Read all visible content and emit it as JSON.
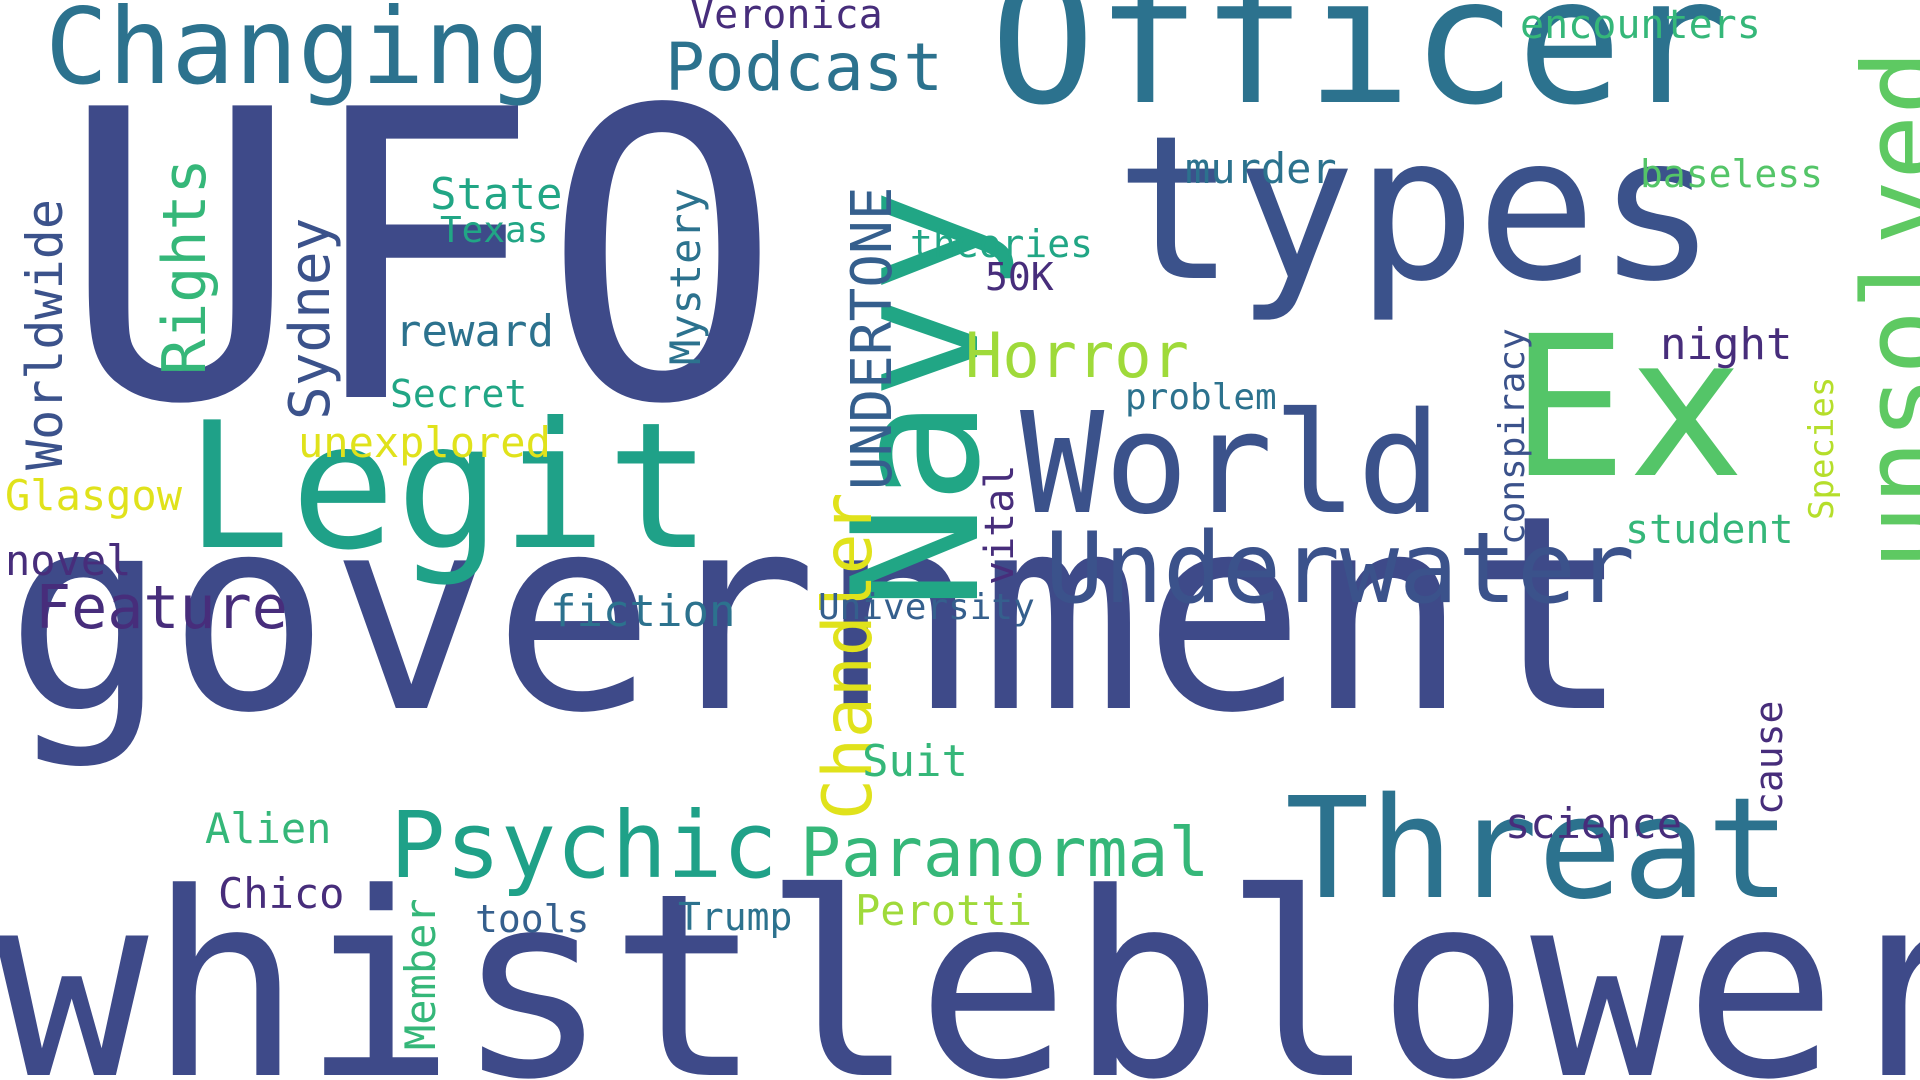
{
  "words": [
    {
      "id": "w-ufo",
      "text": "UFO",
      "color": "#3e4a89"
    },
    {
      "id": "w-government",
      "text": "government",
      "color": "#3e4a89"
    },
    {
      "id": "w-whistleblower",
      "text": "whistleblower",
      "color": "#3e4a89"
    },
    {
      "id": "w-types",
      "text": "types",
      "color": "#3b528b"
    },
    {
      "id": "w-officer",
      "text": "Officer",
      "color": "#2c728e"
    },
    {
      "id": "w-ex",
      "text": "Ex",
      "color": "#54c568"
    },
    {
      "id": "w-navy",
      "text": "Navy",
      "color": "#21a685"
    },
    {
      "id": "w-legit",
      "text": "Legit",
      "color": "#1fa188"
    },
    {
      "id": "w-world",
      "text": "World",
      "color": "#3b528b"
    },
    {
      "id": "w-threat",
      "text": "Threat",
      "color": "#2c728e"
    },
    {
      "id": "w-changing",
      "text": "Changing",
      "color": "#2c728e"
    },
    {
      "id": "w-unsolved",
      "text": "unsolved",
      "color": "#5ec962"
    },
    {
      "id": "w-underwater",
      "text": "Underwater",
      "color": "#3b528b"
    },
    {
      "id": "w-psychic",
      "text": "Psychic",
      "color": "#1fa188"
    },
    {
      "id": "w-paranormal",
      "text": "Paranormal",
      "color": "#35b779"
    },
    {
      "id": "w-chandler",
      "text": "Chandler",
      "color": "#e0e21b"
    },
    {
      "id": "w-undertone",
      "text": "UNDERTONE",
      "color": "#355f8d"
    },
    {
      "id": "w-podcast",
      "text": "Podcast",
      "color": "#2c728e"
    },
    {
      "id": "w-horror",
      "text": "Horror",
      "color": "#9fda3a"
    },
    {
      "id": "w-rights",
      "text": "Rights",
      "color": "#35b779"
    },
    {
      "id": "w-sydney",
      "text": "Sydney",
      "color": "#3b528b"
    },
    {
      "id": "w-worldwide",
      "text": "Worldwide",
      "color": "#3b528b"
    },
    {
      "id": "w-feature",
      "text": "Feature",
      "color": "#472d7b"
    },
    {
      "id": "w-mystery",
      "text": "Mystery",
      "color": "#2c728e"
    },
    {
      "id": "w-veronica",
      "text": "Veronica",
      "color": "#472d7b"
    },
    {
      "id": "w-encounters",
      "text": "encounters",
      "color": "#35b779"
    },
    {
      "id": "w-murder",
      "text": "murder",
      "color": "#2c728e"
    },
    {
      "id": "w-baseless",
      "text": "baseless",
      "color": "#54c568"
    },
    {
      "id": "w-state",
      "text": "State",
      "color": "#21a685"
    },
    {
      "id": "w-texas",
      "text": "Texas",
      "color": "#21a685"
    },
    {
      "id": "w-theories",
      "text": "theories",
      "color": "#21a685"
    },
    {
      "id": "w-50k",
      "text": "50K",
      "color": "#472d7b"
    },
    {
      "id": "w-reward",
      "text": "reward",
      "color": "#2c728e"
    },
    {
      "id": "w-night",
      "text": "night",
      "color": "#472d7b"
    },
    {
      "id": "w-secret",
      "text": "Secret",
      "color": "#21a685"
    },
    {
      "id": "w-problem",
      "text": "problem",
      "color": "#2c728e"
    },
    {
      "id": "w-conspiracy",
      "text": "conspiracy",
      "color": "#3b528b"
    },
    {
      "id": "w-species",
      "text": "Species",
      "color": "#b5de2b"
    },
    {
      "id": "w-unexplored",
      "text": "unexplored",
      "color": "#e0e21b"
    },
    {
      "id": "w-glasgow",
      "text": "Glasgow",
      "color": "#e0e21b"
    },
    {
      "id": "w-vital",
      "text": "vital",
      "color": "#472d7b"
    },
    {
      "id": "w-student",
      "text": "student",
      "color": "#35b779"
    },
    {
      "id": "w-novel",
      "text": "novel",
      "color": "#472d7b"
    },
    {
      "id": "w-fiction",
      "text": "fiction",
      "color": "#2c728e"
    },
    {
      "id": "w-university",
      "text": "University",
      "color": "#355f8d"
    },
    {
      "id": "w-suit",
      "text": "Suit",
      "color": "#35b779"
    },
    {
      "id": "w-cause",
      "text": "cause",
      "color": "#472d7b"
    },
    {
      "id": "w-alien",
      "text": "Alien",
      "color": "#35b779"
    },
    {
      "id": "w-science",
      "text": "science",
      "color": "#472d7b"
    },
    {
      "id": "w-chico",
      "text": "Chico",
      "color": "#472d7b"
    },
    {
      "id": "w-member",
      "text": "Member",
      "color": "#35b779"
    },
    {
      "id": "w-tools",
      "text": "tools",
      "color": "#355f8d"
    },
    {
      "id": "w-trump",
      "text": "Trump",
      "color": "#2c728e"
    },
    {
      "id": "w-perotti",
      "text": "Perotti",
      "color": "#9fda3a"
    }
  ]
}
